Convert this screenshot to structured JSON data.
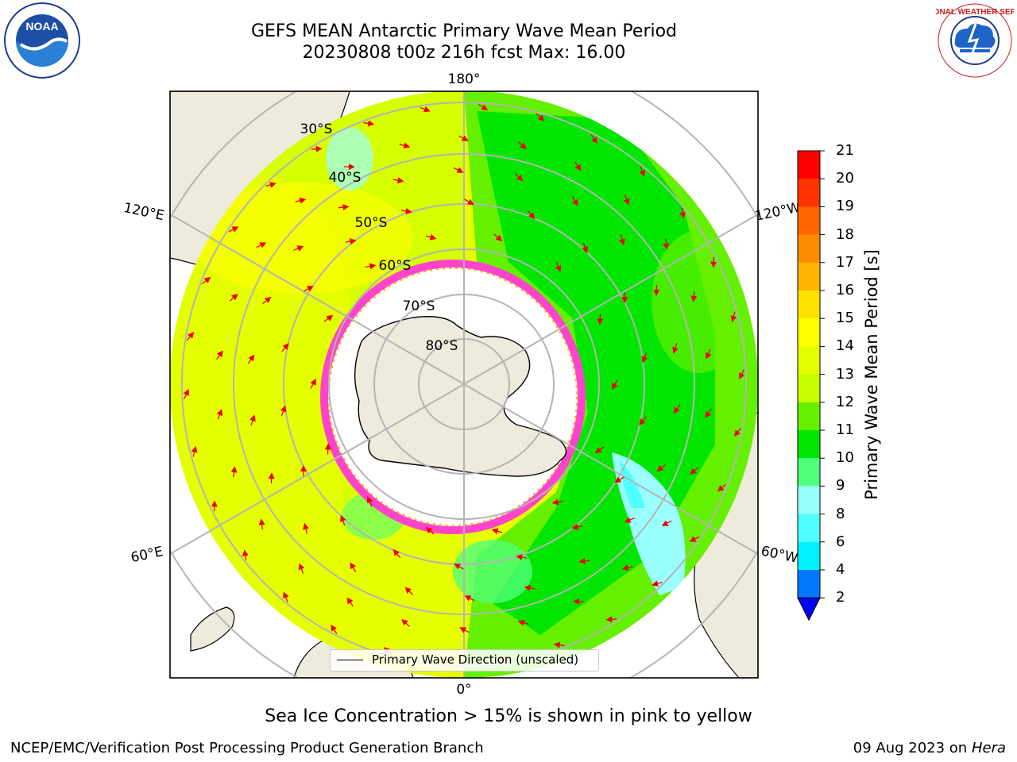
{
  "header": {
    "title_line1": "GEFS MEAN Antarctic Primary Wave Mean Period",
    "title_line2": "20230808 t00z 216h fcst   Max: 16.00"
  },
  "logos": {
    "left": {
      "name": "NOAA",
      "text": "NOAA"
    },
    "right": {
      "name": "National Weather Service",
      "text": "NATIONAL WEATHER SERVICE"
    }
  },
  "map": {
    "longitude_labels": {
      "top": "180°",
      "bottom": "0°",
      "upper_left": "120°E",
      "upper_right": "120°W",
      "lower_left": "60°E",
      "lower_right": "60°W"
    },
    "latitude_labels": [
      "30°S",
      "40°S",
      "50°S",
      "60°S",
      "70°S",
      "80°S"
    ],
    "legend": "Primary Wave Direction (unscaled)",
    "colors": {
      "land": "#eeeadc",
      "ice_edge": "#ff44cc",
      "arrows": "#ee0000",
      "grid": "#b4b4b4"
    }
  },
  "colorbar": {
    "title": "Primary Wave Mean Period [s]",
    "levels": [
      "21",
      "20",
      "19",
      "18",
      "17",
      "16",
      "15",
      "14",
      "13",
      "12",
      "11",
      "10",
      "9",
      "8",
      "6",
      "4",
      "2"
    ],
    "colors": [
      "#ff0000",
      "#ff3300",
      "#ff6600",
      "#ff8c00",
      "#ffb400",
      "#ffe100",
      "#ffff00",
      "#e6ff00",
      "#c8ff00",
      "#64f000",
      "#00e600",
      "#50ff7a",
      "#9affff",
      "#50ffff",
      "#00f0ff",
      "#0078ff"
    ],
    "under_color": "#0000ff"
  },
  "footer": {
    "note": "Sea Ice Concentration > 15% is shown in pink to yellow",
    "left": "NCEP/EMC/Verification Post Processing Product Generation Branch",
    "right_date": "09 Aug 2023 on",
    "right_host": "Hera"
  }
}
